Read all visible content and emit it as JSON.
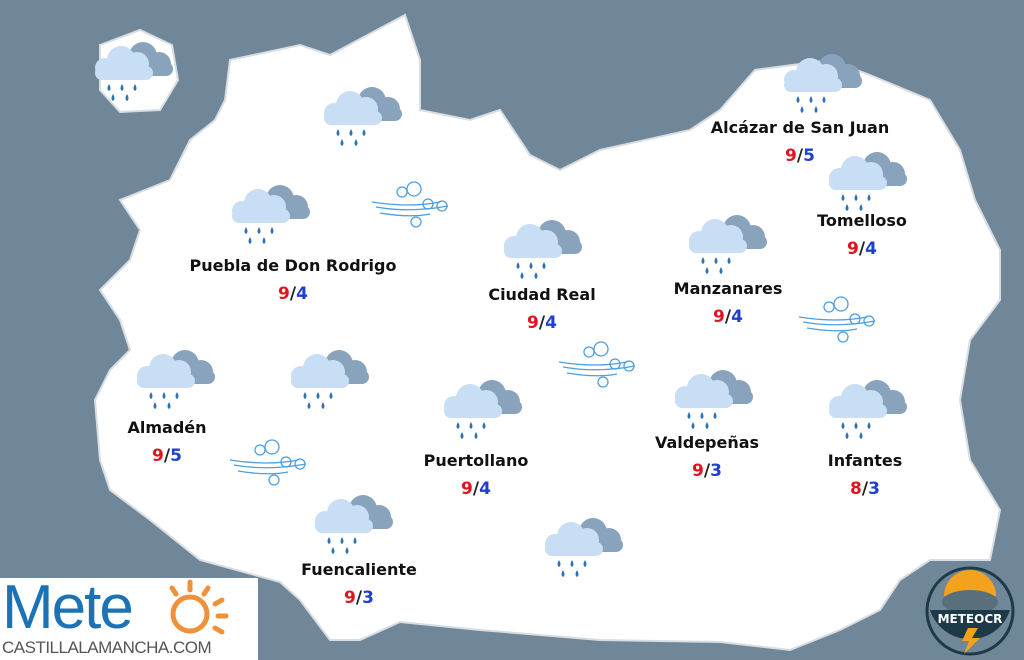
{
  "map": {
    "background_color": "#6f8798",
    "region_color": "#ffffff",
    "max_temp_color": "#e0141c",
    "min_temp_color": "#1f3fd0",
    "separator": "/"
  },
  "cities": [
    {
      "name": "Alcázar de San Juan",
      "max": "9",
      "min": "5"
    },
    {
      "name": "Tomelloso",
      "max": "9",
      "min": "4"
    },
    {
      "name": "Puebla de Don Rodrigo",
      "max": "9",
      "min": "4"
    },
    {
      "name": "Ciudad Real",
      "max": "9",
      "min": "4"
    },
    {
      "name": "Manzanares",
      "max": "9",
      "min": "4"
    },
    {
      "name": "Almadén",
      "max": "9",
      "min": "5"
    },
    {
      "name": "Puertollano",
      "max": "9",
      "min": "4"
    },
    {
      "name": "Valdepeñas",
      "max": "9",
      "min": "3"
    },
    {
      "name": "Infantes",
      "max": "8",
      "min": "3"
    },
    {
      "name": "Fuencaliente",
      "max": "9",
      "min": "3"
    }
  ],
  "icons": {
    "weather": "rain-cloud-icon",
    "wind": "wind-icon"
  },
  "logos": {
    "left_main": "Mete",
    "left_sub": "CASTILLALAMANCHA.COM",
    "right": "METEOCR"
  }
}
